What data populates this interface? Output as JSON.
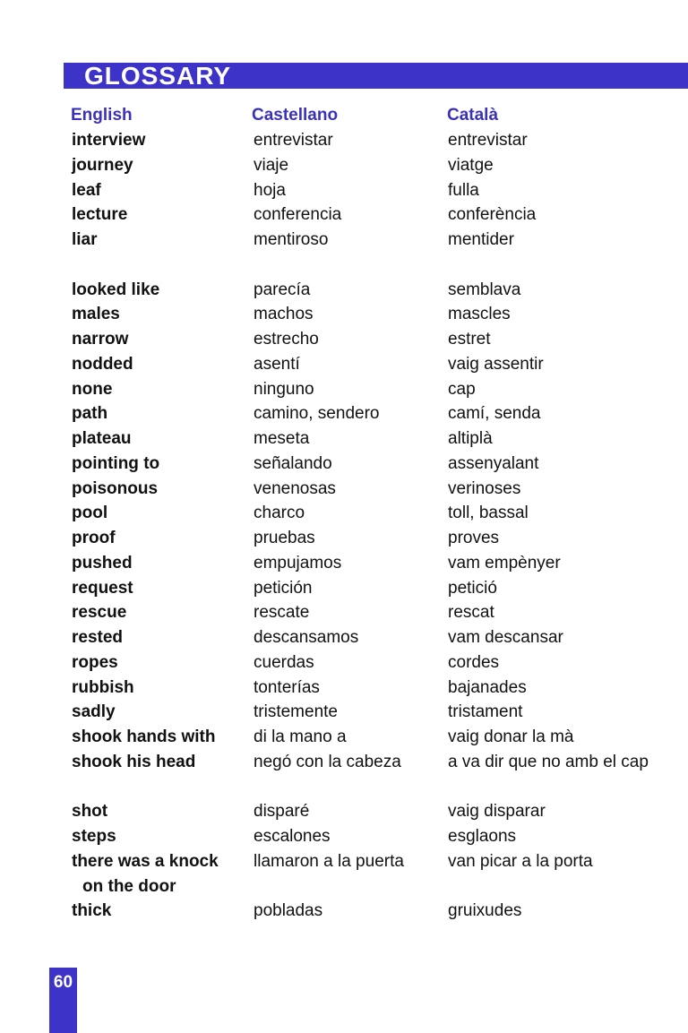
{
  "header": {
    "title": "GLOSSARY"
  },
  "columns": {
    "english": "English",
    "castellano": "Castellano",
    "catala": "Català"
  },
  "entries": [
    {
      "en": "interview",
      "es": "entrevistar",
      "ca": "entrevistar"
    },
    {
      "en": "journey",
      "es": "viaje",
      "ca": "viatge"
    },
    {
      "en": "leaf",
      "es": "hoja",
      "ca": "fulla"
    },
    {
      "en": "lecture",
      "es": "conferencia",
      "ca": "conferència"
    },
    {
      "en": "liar",
      "es": "mentiroso",
      "ca": "mentider"
    },
    {
      "en": "looked like",
      "es": "parecía",
      "ca": "semblava"
    },
    {
      "en": "males",
      "es": "machos",
      "ca": "mascles"
    },
    {
      "en": "narrow",
      "es": "estrecho",
      "ca": "estret"
    },
    {
      "en": "nodded",
      "es": "asentí",
      "ca": "vaig assentir"
    },
    {
      "en": "none",
      "es": "ninguno",
      "ca": "cap"
    },
    {
      "en": "path",
      "es": "camino, sendero",
      "ca": "camí, senda"
    },
    {
      "en": "plateau",
      "es": "meseta",
      "ca": "altiplà"
    },
    {
      "en": "pointing to",
      "es": "señalando",
      "ca": "assenyalant"
    },
    {
      "en": "poisonous",
      "es": "venenosas",
      "ca": "verinoses"
    },
    {
      "en": "pool",
      "es": "charco",
      "ca": "toll, bassal"
    },
    {
      "en": "proof",
      "es": "pruebas",
      "ca": "proves"
    },
    {
      "en": "pushed",
      "es": "empujamos",
      "ca": "vam empènyer"
    },
    {
      "en": "request",
      "es": "petición",
      "ca": "petició"
    },
    {
      "en": "rescue",
      "es": "rescate",
      "ca": "rescat"
    },
    {
      "en": "rested",
      "es": "descansamos",
      "ca": "vam descansar"
    },
    {
      "en": "ropes",
      "es": "cuerdas",
      "ca": "cordes"
    },
    {
      "en": "rubbish",
      "es": "tonterías",
      "ca": "bajanades"
    },
    {
      "en": "sadly",
      "es": "tristemente",
      "ca": "tristament"
    },
    {
      "en": "shook hands with",
      "es": "di la mano a",
      "ca": "vaig donar la mà"
    },
    {
      "en": "shook his head",
      "es": "negó con la cabeza",
      "ca": "a va dir que no amb el cap"
    },
    {
      "en": "shot",
      "es": "disparé",
      "ca": "vaig disparar"
    },
    {
      "en": "steps",
      "es": "escalones",
      "ca": "esglaons"
    },
    {
      "en": "there was a knock",
      "en_cont": "on the door",
      "es": "llamaron a la puerta",
      "ca": "van picar a la porta"
    },
    {
      "en": "thick",
      "es": "pobladas",
      "ca": "gruixudes"
    }
  ],
  "footer": {
    "page_number": "60"
  },
  "colors": {
    "accent": "#3e33c9",
    "header_text": "#3a32b8"
  }
}
